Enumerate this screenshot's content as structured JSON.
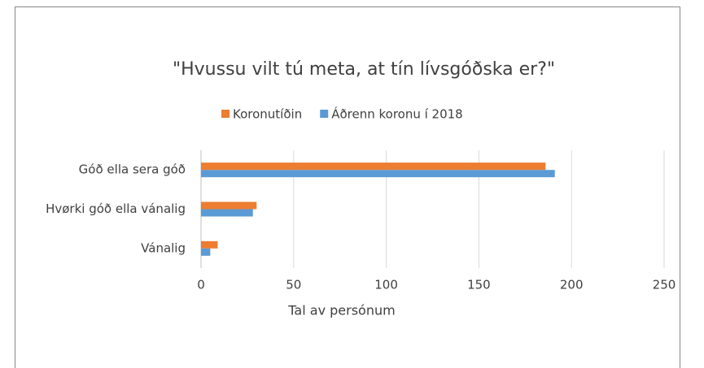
{
  "chart_data": {
    "type": "barh",
    "title": "\"Hvussu vilt tú meta, at tín lívsgóðska er?\"",
    "categories": [
      "Góð ella sera góð",
      "Hvørki góð ella vánalig",
      "Vánalig"
    ],
    "series": [
      {
        "name": "Koronutíðin",
        "color": "#ed7d31",
        "values": [
          186,
          30,
          9
        ]
      },
      {
        "name": "Áðrenn koronu í 2018",
        "color": "#5b9bd5",
        "values": [
          191,
          28,
          5
        ]
      }
    ],
    "xlim": [
      0,
      250
    ],
    "xticks": [
      0,
      50,
      100,
      150,
      200,
      250
    ],
    "xlabel": "Tal av persónum",
    "grid": true,
    "legend": "top"
  }
}
